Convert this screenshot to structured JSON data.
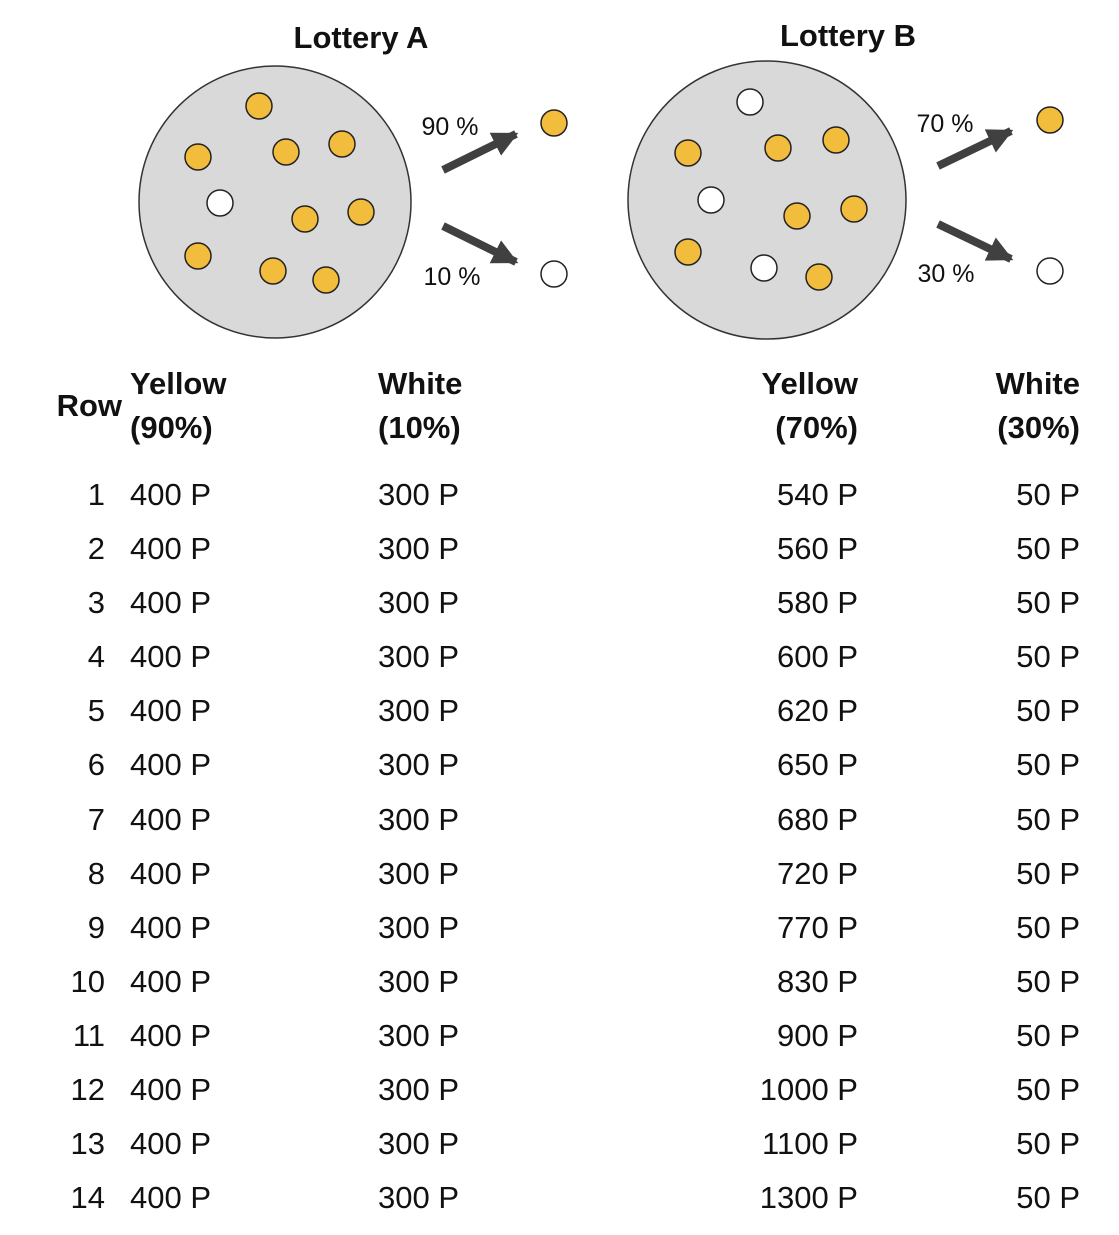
{
  "lottery_a": {
    "title": "Lottery A",
    "yellow_pct_label": "90 %",
    "white_pct_label": "10 %",
    "urn_balls": [
      "yellow",
      "yellow",
      "yellow",
      "yellow",
      "white",
      "yellow",
      "yellow",
      "yellow",
      "yellow",
      "yellow"
    ]
  },
  "lottery_b": {
    "title": "Lottery B",
    "yellow_pct_label": "70 %",
    "white_pct_label": "30 %",
    "urn_balls": [
      "white",
      "yellow",
      "yellow",
      "yellow",
      "white",
      "yellow",
      "yellow",
      "yellow",
      "white",
      "yellow"
    ]
  },
  "colors": {
    "yellow": "#f2bd3d",
    "white": "#ffffff",
    "urn": "#d9d9d9",
    "arrow": "#404040"
  },
  "table": {
    "headers": {
      "row": "Row",
      "a_yellow_line1": "Yellow",
      "a_yellow_line2": "(90%)",
      "a_white_line1": "White",
      "a_white_line2": "(10%)",
      "b_yellow_line1": "Yellow",
      "b_yellow_line2": "(70%)",
      "b_white_line1": "White",
      "b_white_line2": "(30%)"
    },
    "rows": [
      {
        "row": "1",
        "a_yellow": "400 P",
        "a_white": "300 P",
        "b_yellow": "540 P",
        "b_white": "50 P"
      },
      {
        "row": "2",
        "a_yellow": "400 P",
        "a_white": "300 P",
        "b_yellow": "560 P",
        "b_white": "50 P"
      },
      {
        "row": "3",
        "a_yellow": "400 P",
        "a_white": "300 P",
        "b_yellow": "580 P",
        "b_white": "50 P"
      },
      {
        "row": "4",
        "a_yellow": "400 P",
        "a_white": "300 P",
        "b_yellow": "600 P",
        "b_white": "50 P"
      },
      {
        "row": "5",
        "a_yellow": "400 P",
        "a_white": "300 P",
        "b_yellow": "620 P",
        "b_white": "50 P"
      },
      {
        "row": "6",
        "a_yellow": "400 P",
        "a_white": "300 P",
        "b_yellow": "650 P",
        "b_white": "50 P"
      },
      {
        "row": "7",
        "a_yellow": "400 P",
        "a_white": "300 P",
        "b_yellow": "680 P",
        "b_white": "50 P"
      },
      {
        "row": "8",
        "a_yellow": "400 P",
        "a_white": "300 P",
        "b_yellow": "720 P",
        "b_white": "50 P"
      },
      {
        "row": "9",
        "a_yellow": "400 P",
        "a_white": "300 P",
        "b_yellow": "770 P",
        "b_white": "50 P"
      },
      {
        "row": "10",
        "a_yellow": "400 P",
        "a_white": "300 P",
        "b_yellow": "830 P",
        "b_white": "50 P"
      },
      {
        "row": "11",
        "a_yellow": "400 P",
        "a_white": "300 P",
        "b_yellow": "900 P",
        "b_white": "50 P"
      },
      {
        "row": "12",
        "a_yellow": "400 P",
        "a_white": "300 P",
        "b_yellow": "1000 P",
        "b_white": "50 P"
      },
      {
        "row": "13",
        "a_yellow": "400 P",
        "a_white": "300 P",
        "b_yellow": "1100 P",
        "b_white": "50 P"
      },
      {
        "row": "14",
        "a_yellow": "400 P",
        "a_white": "300 P",
        "b_yellow": "1300 P",
        "b_white": "50 P"
      }
    ]
  }
}
